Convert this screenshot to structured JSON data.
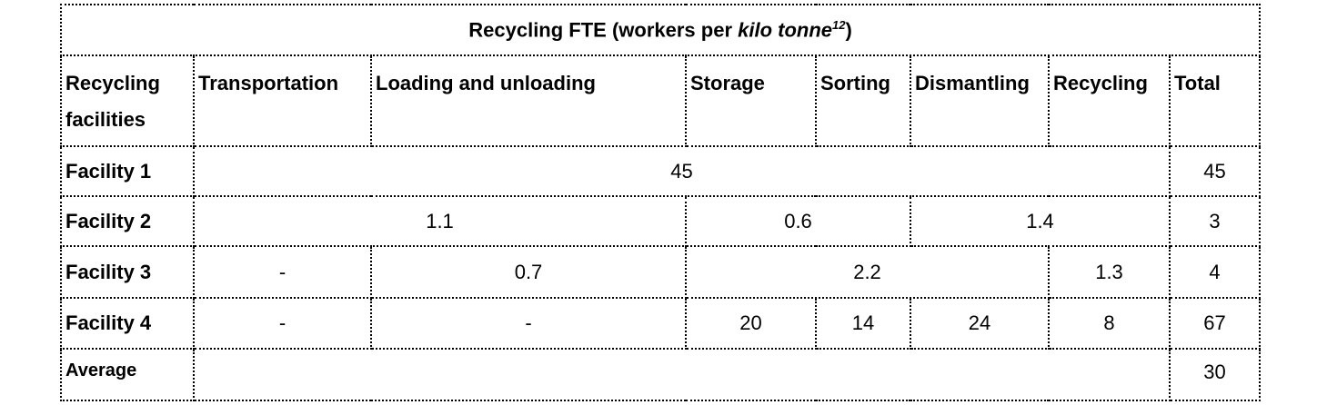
{
  "table": {
    "title": {
      "prefix": "Recycling FTE (workers per ",
      "italic": "kilo tonne",
      "sup": "12",
      "suffix": ")"
    },
    "headers": [
      "Recycling facilities",
      "Transportation",
      "Loading and unloading",
      "Storage",
      "Sorting",
      "Dismantling",
      "Recycling",
      "Total"
    ],
    "rows": [
      [
        "Facility 1",
        45,
        45
      ],
      [
        "Facility 2",
        1.1,
        0.6,
        1.4,
        3
      ],
      [
        "Facility 3",
        "-",
        0.7,
        2.2,
        1.3,
        4
      ],
      [
        "Facility 4",
        "-",
        "-",
        20,
        14,
        24,
        8,
        67
      ],
      [
        "Average",
        30
      ]
    ]
  }
}
